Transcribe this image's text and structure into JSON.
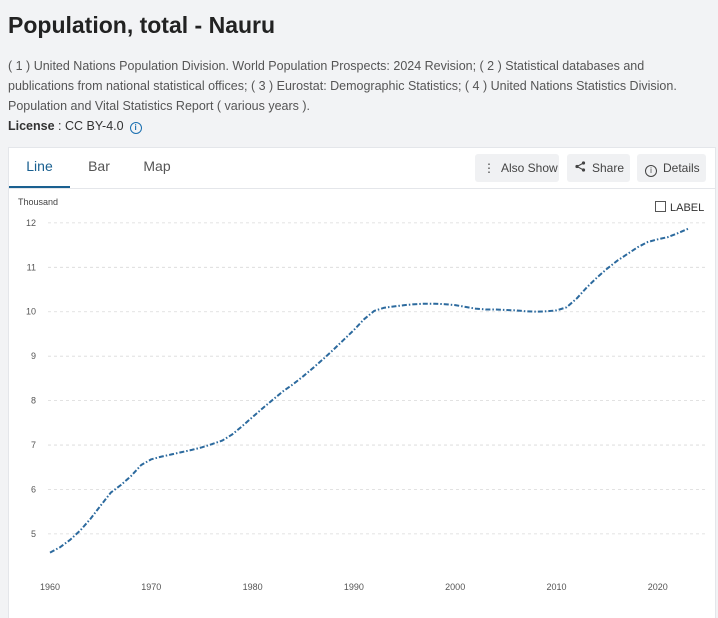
{
  "header": {
    "title": "Population, total - Nauru",
    "sources": "( 1 ) United Nations Population Division. World Population Prospects: 2024 Revision; ( 2 ) Statistical databases and publications from national statistical offices; ( 3 ) Eurostat: Demographic Statistics; ( 4 ) United Nations Statistics Division. Population and Vital Statistics Report ( various years ).",
    "license_label": "License",
    "license_value": " : CC BY-4.0",
    "info_icon": "i"
  },
  "tabs": [
    {
      "label": "Line",
      "active": true
    },
    {
      "label": "Bar",
      "active": false
    },
    {
      "label": "Map",
      "active": false
    }
  ],
  "toolbar": {
    "also_show": "Also Show",
    "share": "Share",
    "details": "Details"
  },
  "label_toggle": "LABEL",
  "colors": {
    "line": "#2c6a9e",
    "grid": "#d9d9d9",
    "accent": "#1a6090"
  },
  "chart_data": {
    "type": "line",
    "unit_label": "Thousand",
    "line_style": "dash-dot",
    "ylim": [
      4.3,
      12.2
    ],
    "xlim": [
      1960,
      2024
    ],
    "yticks": [
      5,
      6,
      7,
      8,
      9,
      10,
      11,
      12
    ],
    "xticks": [
      1960,
      1970,
      1980,
      1990,
      2000,
      2010,
      2020
    ],
    "grid": true,
    "series": [
      {
        "x": [
          1960,
          1961,
          1962,
          1963,
          1964,
          1965,
          1966,
          1967,
          1968,
          1969,
          1970,
          1971,
          1972,
          1973,
          1974,
          1975,
          1976,
          1977,
          1978,
          1979,
          1980,
          1981,
          1982,
          1983,
          1984,
          1985,
          1986,
          1987,
          1988,
          1989,
          1990,
          1991,
          1992,
          1993,
          1994,
          1995,
          1996,
          1997,
          1998,
          1999,
          2000,
          2001,
          2002,
          2003,
          2004,
          2005,
          2006,
          2007,
          2008,
          2009,
          2010,
          2011,
          2012,
          2013,
          2014,
          2015,
          2016,
          2017,
          2018,
          2019,
          2020,
          2021,
          2022,
          2023
        ],
        "values": [
          4.58,
          4.7,
          4.87,
          5.08,
          5.34,
          5.64,
          5.93,
          6.1,
          6.3,
          6.55,
          6.68,
          6.74,
          6.79,
          6.84,
          6.89,
          6.95,
          7.02,
          7.1,
          7.24,
          7.43,
          7.63,
          7.83,
          8.02,
          8.21,
          8.37,
          8.55,
          8.74,
          8.94,
          9.15,
          9.37,
          9.59,
          9.83,
          10.02,
          10.09,
          10.12,
          10.15,
          10.17,
          10.18,
          10.18,
          10.17,
          10.15,
          10.11,
          10.07,
          10.05,
          10.05,
          10.04,
          10.03,
          10.01,
          10.0,
          10.01,
          10.03,
          10.1,
          10.3,
          10.55,
          10.77,
          10.97,
          11.15,
          11.3,
          11.45,
          11.57,
          11.63,
          11.68,
          11.77,
          11.87
        ]
      }
    ]
  }
}
